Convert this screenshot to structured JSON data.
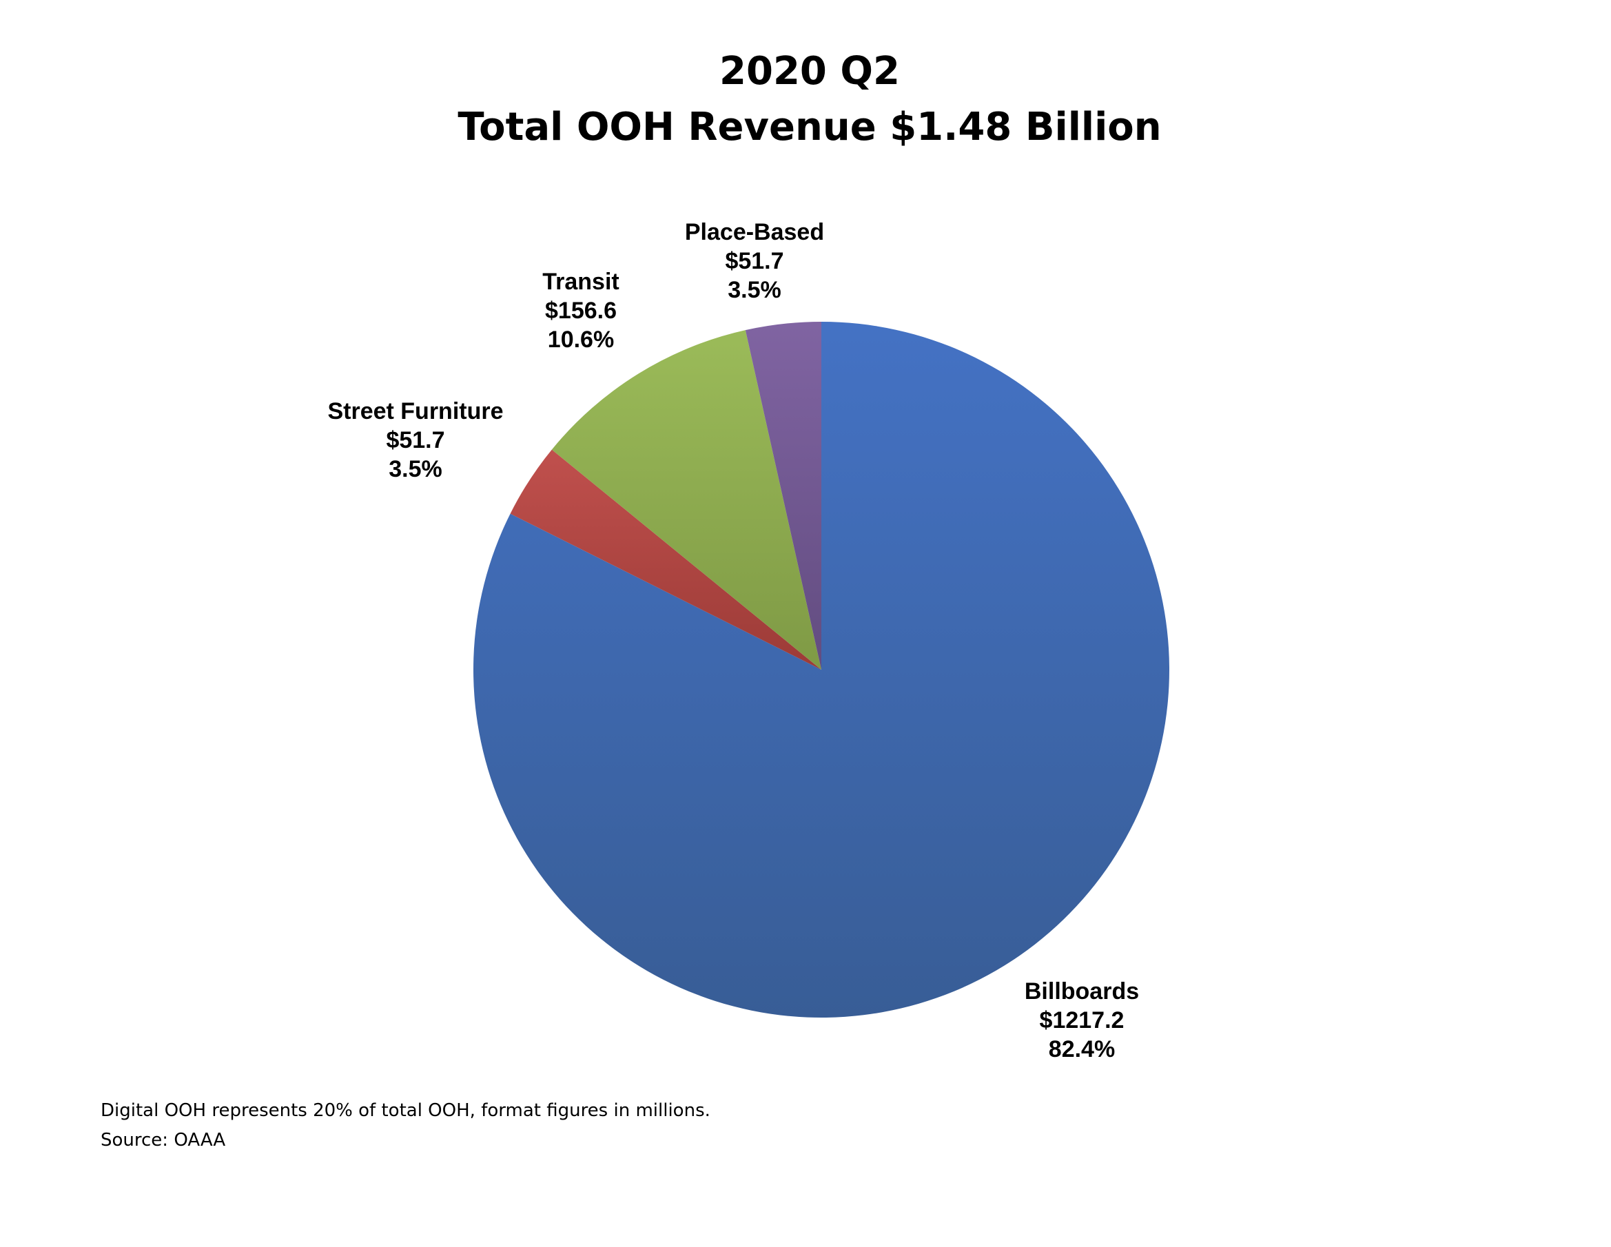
{
  "chart_data": {
    "type": "pie",
    "title": [
      "2020 Q2",
      "Total OOH Revenue $1.48 Billion"
    ],
    "slices": [
      {
        "name": "Billboards",
        "value": 1217.2,
        "value_label": "$1217.2",
        "percent_label": "82.4%",
        "percent": 82.4,
        "color": "#4472C4",
        "color_dark": "#385D96"
      },
      {
        "name": "Street Furniture",
        "value": 51.7,
        "value_label": "$51.7",
        "percent_label": "3.5%",
        "percent": 3.5,
        "color": "#C0504D",
        "color_dark": "#9C3B37"
      },
      {
        "name": "Transit",
        "value": 156.6,
        "value_label": "$156.6",
        "percent_label": "10.6%",
        "percent": 10.6,
        "color": "#9BBB59",
        "color_dark": "#7F9A45"
      },
      {
        "name": "Place-Based",
        "value": 51.7,
        "value_label": "$51.7",
        "percent_label": "3.5%",
        "percent": 3.5,
        "color": "#8064A2",
        "color_dark": "#624C80"
      }
    ],
    "start_angle": "12 o'clock",
    "direction": "clockwise",
    "legend": "none"
  },
  "footnote": {
    "line1": "Digital OOH represents 20% of total OOH, format figures in millions.",
    "line2": "Source: OAAA"
  }
}
